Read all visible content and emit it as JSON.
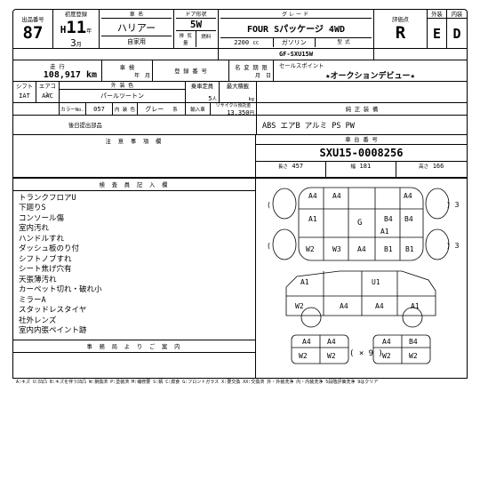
{
  "h": {
    "lot_lbl": "出品番号",
    "lot": "87",
    "first_reg_lbl": "初度登録",
    "era": "H",
    "year": "11",
    "month": "3",
    "yr_u": "年",
    "mo_u": "月",
    "name_lbl": "車 名",
    "name": "ハリアー",
    "use": "自家用",
    "door_lbl": "ドア形状",
    "door": "5W",
    "disp_lbl": "排 気 量",
    "disp": "2200",
    "disp_u": "CC",
    "fuel_lbl": "燃料",
    "fuel": "ガソリン",
    "grade_lbl": "グレード",
    "grade": "FOUR  Sパッケージ  4WD",
    "model_lbl": "型 式",
    "model": "GF‑SXU15W",
    "score_lbl": "評価点",
    "score": "R",
    "ext_lbl": "外装",
    "ext": "E",
    "int_lbl": "内装",
    "int": "D"
  },
  "row2": {
    "odo_lbl": "走 行",
    "odo": "108,917 km",
    "insp_lbl": "車 検",
    "y": "年",
    "m": "月",
    "regname_lbl": "登 録 番 号",
    "rd": "月",
    "rd2": "日",
    "nc_lbl": "名 変 期 限",
    "sp_lbl": "セールスポイント",
    "sp": "★オークションデビュー★"
  },
  "row3": {
    "shift_lbl": "シフト",
    "shift": "IAT",
    "ac_lbl": "エアコン",
    "ac": "AAC",
    "color_lbl": "外 装 色",
    "color": "パールツートン",
    "cn_lbl": "カラーNo.",
    "cn": "057",
    "intc_lbl": "内 装 色",
    "intc": "グレー",
    "intc_u": "系",
    "cap_lbl": "乗車定員",
    "cap": "5",
    "cap_u": "人",
    "load_lbl": "最大積載",
    "load_u": "kg",
    "imp_lbl": "輸入車",
    "rec_lbl": "リサイクル預託金",
    "rec": "13,350",
    "rec_u": "円",
    "rem_lbl": "後日提出部品"
  },
  "equip": {
    "lbl": "純 正 装 備",
    "val": "ABS  エアB  アルミ  PS  PW"
  },
  "chassis": {
    "lbl": "車 台 番 号",
    "val": "SXU15‑0008256"
  },
  "dim": {
    "l_lbl": "長さ",
    "l": "457",
    "w_lbl": "幅",
    "w": "181",
    "h_lbl": "高さ",
    "h": "166"
  },
  "caution_lbl": "注 意 事 項 欄",
  "insp_notes_lbl": "検 査 員 記 入 欄",
  "office_lbl": "事 務 局 よ り ご 案 内",
  "notes": [
    "トランクフロアU",
    "下廻りS",
    "コンソール傷",
    "室内汚れ",
    "ハンドルすれ",
    "ダッシュ板のり付",
    "シフトノブすれ",
    "シート焦げ穴有",
    "天張薄汚れ",
    "カーペット切れ・破れ小",
    "ミラーA",
    "スタッドレスタイヤ",
    "社外レンズ",
    "室内内張ペイント跡"
  ],
  "dia": {
    "a4": "A4",
    "a1": "A1",
    "b4": "B4",
    "b1": "B1",
    "w2": "W2",
    "w3": "W3",
    "u1": "U1",
    "g": "G",
    "x9": "× 9",
    "p3": ")  3",
    "c_a": "A4",
    "c_b": "B4"
  },
  "legend": "A:キズ  U:凹凸  B:キズを伴う凹凸  W:損換済  P:塗装済  M:補修要  S:錆  C:腐食  G:フロントガラス  X:要交換  XX:交換済  外・外装洗浄  内・内装洗浄  5段階評価洗浄  9はクリア"
}
